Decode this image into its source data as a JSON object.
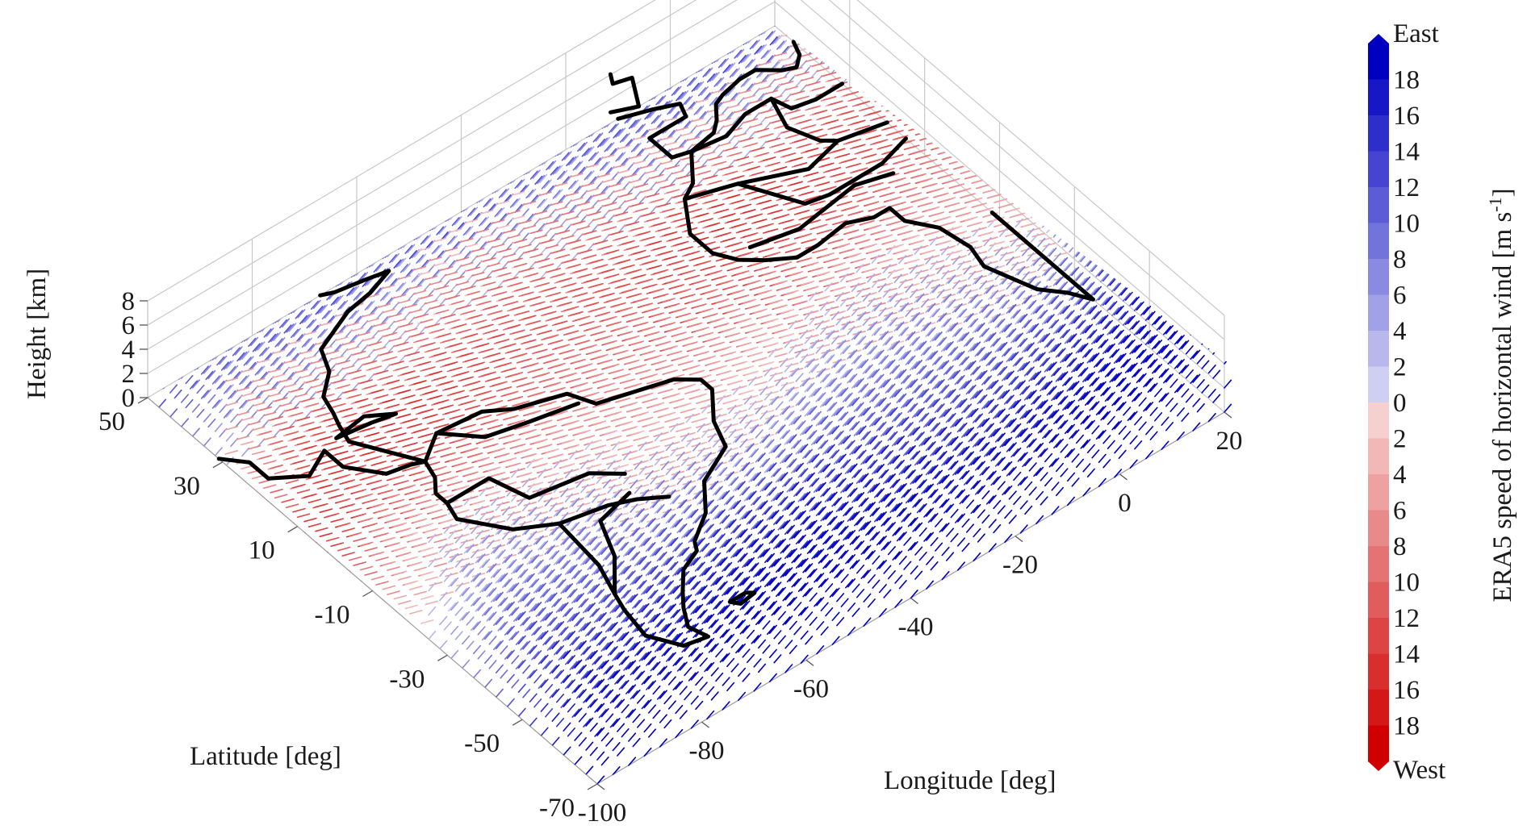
{
  "chart_data": {
    "type": "vector-field-3d",
    "x_axis": {
      "label": "Longitude [deg]",
      "ticks": [
        -100,
        -80,
        -60,
        -40,
        -20,
        0,
        20
      ],
      "range": [
        -100,
        20
      ]
    },
    "y_axis": {
      "label": "Latitude [deg]",
      "ticks": [
        50,
        30,
        10,
        -10,
        -30,
        -50,
        -70
      ],
      "range": [
        -70,
        50
      ]
    },
    "z_axis": {
      "label": "Height [km]",
      "ticks": [
        0,
        2,
        4,
        6,
        8
      ],
      "range": [
        0,
        8
      ]
    },
    "colorbar": {
      "label": "ERA5 speed of horizontal wind [m s",
      "label_sup": "-1",
      "label_end": "]",
      "top_label": "East",
      "bottom_label": "West",
      "east_ticks": [
        18,
        16,
        14,
        12,
        10,
        8,
        6,
        4,
        2
      ],
      "zero_tick": 0,
      "west_ticks": [
        2,
        4,
        6,
        8,
        10,
        12,
        14,
        16,
        18
      ],
      "east_color": "#0000c0",
      "west_color": "#d00000",
      "mid_color": "#ffffff"
    },
    "grid": true,
    "coastline_color": "#000000"
  }
}
